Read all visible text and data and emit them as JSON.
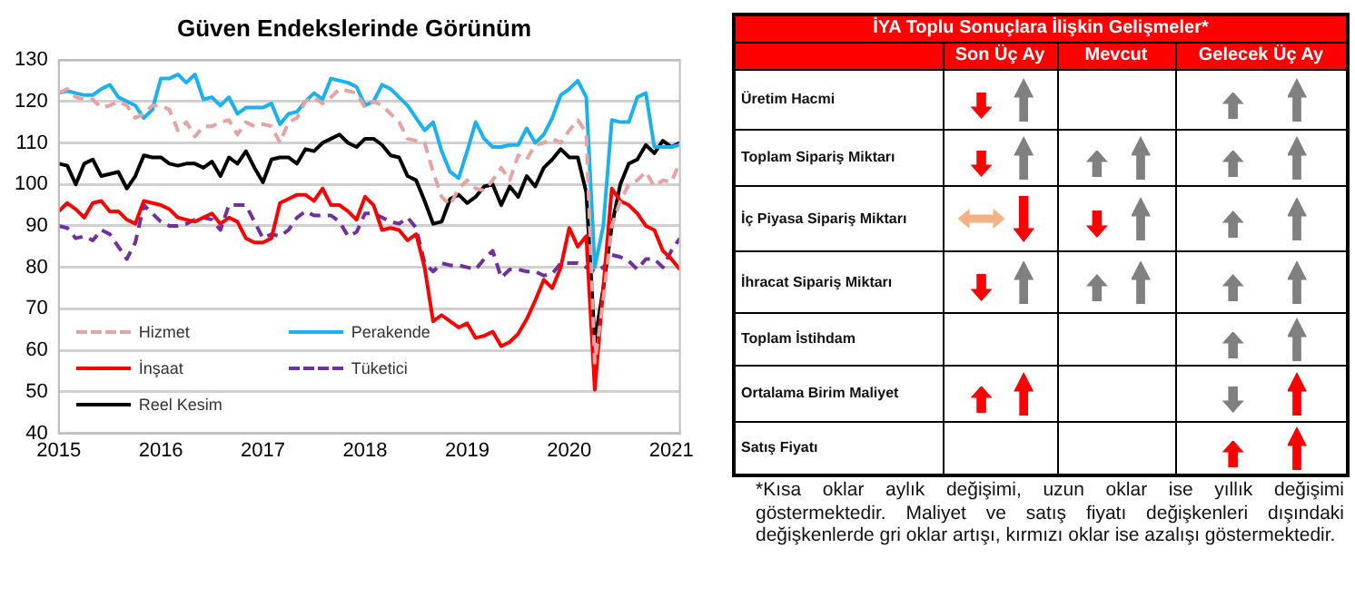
{
  "chart_data": [
    {
      "type": "line",
      "title": "Güven Endekslerinde Görünüm",
      "marker": "none",
      "grid": "y",
      "legend": "bottom left",
      "x": [
        "2015-01",
        "2015-02",
        "2015-03",
        "2015-04",
        "2015-05",
        "2015-06",
        "2015-07",
        "2015-08",
        "2015-09",
        "2015-10",
        "2015-11",
        "2015-12",
        "2016-01",
        "2016-02",
        "2016-03",
        "2016-04",
        "2016-05",
        "2016-06",
        "2016-07",
        "2016-08",
        "2016-09",
        "2016-10",
        "2016-11",
        "2016-12",
        "2017-01",
        "2017-02",
        "2017-03",
        "2017-04",
        "2017-05",
        "2017-06",
        "2017-07",
        "2017-08",
        "2017-09",
        "2017-10",
        "2017-11",
        "2017-12",
        "2018-01",
        "2018-02",
        "2018-03",
        "2018-04",
        "2018-05",
        "2018-06",
        "2018-07",
        "2018-08",
        "2018-09",
        "2018-10",
        "2018-11",
        "2018-12",
        "2019-01",
        "2019-02",
        "2019-03",
        "2019-04",
        "2019-05",
        "2019-06",
        "2019-07",
        "2019-08",
        "2019-09",
        "2019-10",
        "2019-11",
        "2019-12",
        "2020-01",
        "2020-02",
        "2020-03",
        "2020-04",
        "2020-05",
        "2020-06",
        "2020-07",
        "2020-08",
        "2020-09",
        "2020-10",
        "2020-11",
        "2020-12",
        "2021-01",
        "2021-02"
      ],
      "xlim": [
        "2015-01",
        "2021-02"
      ],
      "xticks": [
        "2015",
        "2016",
        "2017",
        "2018",
        "2019",
        "2020",
        "2021"
      ],
      "ylim": [
        40,
        130
      ],
      "yticks": [
        40,
        50,
        60,
        70,
        80,
        90,
        100,
        110,
        120,
        130
      ],
      "series": [
        {
          "name": "Hizmet",
          "color": "#e6a3a3",
          "line_style": "dashed",
          "values": [
            122,
            123,
            121,
            120.5,
            120.5,
            118.5,
            119,
            120,
            119,
            116,
            117,
            119,
            119,
            118,
            113,
            115,
            111.5,
            114,
            114,
            115,
            115.5,
            112,
            115,
            114,
            114.5,
            114,
            110,
            115,
            116,
            120,
            121,
            119.5,
            121,
            123,
            122.5,
            122,
            118.5,
            120,
            119,
            117,
            115,
            111,
            110.5,
            110,
            103,
            97,
            95,
            99,
            101,
            99,
            98.5,
            101,
            104,
            101,
            107,
            106,
            109.5,
            110,
            111,
            110,
            113,
            115.5,
            112.5,
            57,
            72,
            90,
            96,
            100,
            101,
            103,
            99.5,
            101,
            100.5,
            105.5
          ]
        },
        {
          "name": "Perakende",
          "color": "#1ab2ee",
          "line_style": "solid",
          "values": [
            122,
            122.5,
            122,
            121.5,
            121.5,
            123,
            124,
            121,
            120,
            119,
            116,
            118,
            125.5,
            125.5,
            126.5,
            124.5,
            126.5,
            120.5,
            121,
            119,
            121,
            117,
            118.5,
            118.5,
            118.5,
            119.5,
            114.5,
            117,
            117.5,
            120,
            122,
            120.5,
            125.5,
            125,
            124.5,
            123.5,
            119,
            120,
            124,
            123,
            121,
            119,
            116,
            113,
            115,
            108,
            103,
            101.5,
            108,
            115,
            111,
            109,
            109,
            109.5,
            109.5,
            113.5,
            110,
            112,
            116,
            121.5,
            123,
            125,
            121,
            80,
            90,
            115.5,
            115,
            115,
            121,
            122,
            109,
            109,
            109,
            109.5
          ]
        },
        {
          "name": "İnşaat",
          "color": "#ff0000",
          "line_style": "solid",
          "values": [
            93.5,
            95.5,
            94,
            92,
            95.5,
            96,
            93.5,
            93.5,
            91.5,
            90.5,
            96,
            95.5,
            95,
            94,
            92,
            91.5,
            91,
            92,
            93,
            90.5,
            92,
            91,
            87,
            86,
            86,
            87,
            95.5,
            96.5,
            97.5,
            97.5,
            96,
            99,
            95,
            95,
            93.5,
            91.5,
            97,
            95,
            89,
            89.5,
            89,
            86.5,
            88,
            80,
            67,
            68.5,
            67,
            65.5,
            66.5,
            63,
            63.5,
            64.5,
            61,
            62,
            64,
            67.5,
            72,
            77,
            75,
            80,
            89.5,
            85,
            87.5,
            50.5,
            75,
            99,
            96,
            95,
            93,
            90,
            89,
            84,
            82,
            79.5
          ]
        },
        {
          "name": "Tüketici",
          "color": "#7030a0",
          "line_style": "dashed",
          "values": [
            90,
            89.5,
            87,
            87.5,
            86.5,
            89,
            88,
            85,
            82,
            86,
            95,
            93,
            91,
            90,
            90,
            90.5,
            91.5,
            92,
            91.5,
            89,
            95,
            95,
            95,
            91,
            87,
            88,
            87.5,
            89,
            92,
            93.5,
            92.5,
            92.5,
            92.5,
            91,
            87.5,
            88.5,
            93,
            93,
            92,
            91,
            90.5,
            92,
            89.5,
            81,
            79,
            81,
            80.5,
            80.5,
            80,
            79.5,
            82,
            84,
            77.5,
            79.5,
            79.5,
            79,
            79,
            78,
            78.5,
            81,
            81,
            81,
            80,
            79,
            80,
            83,
            82.5,
            81.5,
            79.5,
            82,
            82,
            80,
            84,
            87
          ]
        },
        {
          "name": "Reel Kesim",
          "color": "#000000",
          "line_style": "solid",
          "values": [
            105,
            104.5,
            100,
            105,
            106,
            102,
            102.5,
            103,
            99,
            102,
            107,
            106.5,
            106.5,
            105,
            104.5,
            105,
            105,
            104,
            105.5,
            102,
            106.5,
            105,
            108,
            104,
            100.5,
            106,
            106.5,
            106.5,
            105,
            108.5,
            108,
            110,
            111,
            112,
            110,
            109,
            111,
            111,
            109.5,
            107,
            106.5,
            102,
            101,
            96,
            90.5,
            91,
            96.5,
            97.5,
            95.5,
            97,
            99.5,
            100,
            95,
            99.5,
            97,
            102,
            99.5,
            104,
            106,
            108.5,
            106.5,
            106.5,
            98,
            62,
            75,
            90,
            100,
            105,
            106,
            109.5,
            107.5,
            110.5,
            109,
            110
          ]
        }
      ]
    },
    {
      "type": "other",
      "title": "İYA Toplu Sonuçlara İlişkin Gelişmeler*",
      "categories": [
        "Son Üç Ay",
        "Mevcut",
        "Gelecek Üç Ay"
      ],
      "y_categories": [
        "Üretim Hacmi",
        "Toplam Sipariş Miktarı",
        "İç Piyasa Sipariş Miktarı",
        "İhracat Sipariş Miktarı",
        "Toplam İstihdam",
        "Ortalama Birim Maliyet",
        "Satış Fiyatı"
      ],
      "annotations": [
        "*Kısa oklar aylık değişimi, uzun oklar ise yıllık değişimi göstermektedir. Maliyet ve satış fiyatı değişkenleri dışındaki değişkenlerde gri oklar artışı, kırmızı oklar ise azalışı göstermektedir."
      ]
    }
  ]
}
